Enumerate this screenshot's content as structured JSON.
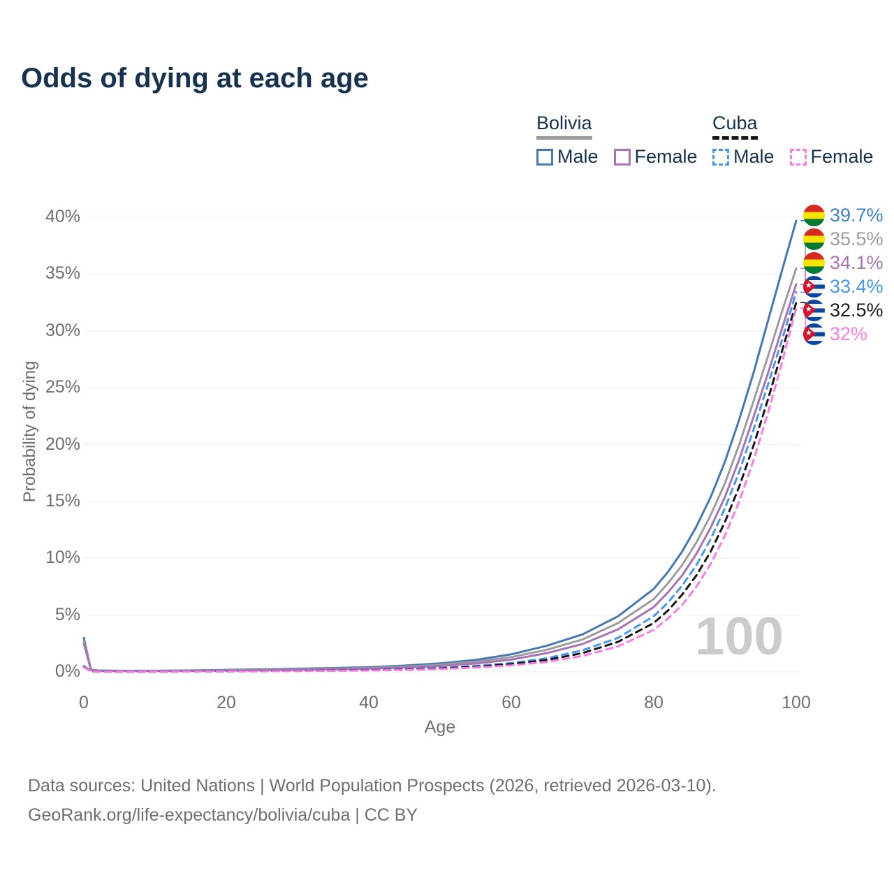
{
  "title": "Odds of dying at each age",
  "legend": {
    "groups": [
      {
        "name": "Bolivia",
        "rule_style": "solid",
        "rule_color": "#9b9b9b",
        "items": [
          {
            "label": "Male",
            "color": "#4478b4",
            "style": "solid"
          },
          {
            "label": "Female",
            "color": "#a873b4",
            "style": "solid"
          }
        ]
      },
      {
        "name": "Cuba",
        "rule_style": "dashed",
        "rule_color": "#161616",
        "items": [
          {
            "label": "Male",
            "color": "#4697f2",
            "style": "dashed"
          },
          {
            "label": "Female",
            "color": "#fb7be4",
            "style": "dashed"
          }
        ]
      }
    ]
  },
  "axes": {
    "y": {
      "label": "Probability of dying",
      "tick_labels": [
        "0%",
        "5%",
        "10%",
        "15%",
        "20%",
        "25%",
        "30%",
        "35%",
        "40%"
      ]
    },
    "x": {
      "label": "Age",
      "tick_labels": [
        "0",
        "20",
        "40",
        "60",
        "80",
        "100"
      ]
    }
  },
  "end_labels": [
    {
      "value": "39.7%",
      "flag": "bolivia",
      "series": "bolivia_male",
      "color": "#4080c8"
    },
    {
      "value": "35.5%",
      "flag": "bolivia",
      "series": "bolivia_both",
      "color": "#9c9c9c"
    },
    {
      "value": "34.1%",
      "flag": "bolivia",
      "series": "bolivia_female",
      "color": "#a873b4"
    },
    {
      "value": "33.4%",
      "flag": "cuba",
      "series": "cuba_male",
      "color": "#4697f2"
    },
    {
      "value": "32.5%",
      "flag": "cuba",
      "series": "cuba_both",
      "color": "#1b1b1b"
    },
    {
      "value": "32%",
      "flag": "cuba",
      "series": "cuba_female",
      "color": "#fb7be4"
    }
  ],
  "watermark": "100",
  "footer": {
    "line1": "Data sources: United Nations | World Population Prospects (2026, retrieved 2026-03-10).",
    "line2": "GeoRank.org/life-expectancy/bolivia/cuba | CC BY"
  },
  "chart_data": {
    "type": "line",
    "title": "Odds of dying at each age",
    "xlabel": "Age",
    "ylabel": "Probability of dying",
    "xlim": [
      0,
      100
    ],
    "ylim_percent": [
      0,
      40
    ],
    "grid": "horizontal",
    "legend_position": "top-right",
    "units": "percent",
    "x": [
      0,
      1,
      2,
      5,
      10,
      15,
      20,
      25,
      30,
      35,
      40,
      45,
      50,
      55,
      60,
      65,
      70,
      75,
      80,
      82,
      84,
      86,
      88,
      90,
      92,
      94,
      96,
      98,
      100
    ],
    "series": [
      {
        "key": "bolivia_male",
        "name": "Bolivia Male",
        "color": "#4478b4",
        "dash": false,
        "values": [
          3.0,
          0.2,
          0.12,
          0.1,
          0.1,
          0.13,
          0.18,
          0.23,
          0.28,
          0.34,
          0.42,
          0.55,
          0.75,
          1.05,
          1.55,
          2.3,
          3.3,
          4.9,
          7.3,
          8.8,
          10.6,
          12.8,
          15.4,
          18.5,
          22.2,
          26.3,
          30.8,
          35.3,
          39.7
        ]
      },
      {
        "key": "bolivia_both",
        "name": "Bolivia Both sexes",
        "color": "#9c9c9c",
        "dash": false,
        "values": [
          2.75,
          0.18,
          0.11,
          0.09,
          0.09,
          0.11,
          0.15,
          0.19,
          0.23,
          0.28,
          0.35,
          0.46,
          0.63,
          0.89,
          1.3,
          1.95,
          2.85,
          4.3,
          6.4,
          7.8,
          9.4,
          11.4,
          13.8,
          16.6,
          20.0,
          23.8,
          27.7,
          31.7,
          35.5
        ]
      },
      {
        "key": "bolivia_female",
        "name": "Bolivia Female",
        "color": "#a873b4",
        "dash": false,
        "values": [
          2.5,
          0.16,
          0.1,
          0.08,
          0.08,
          0.09,
          0.12,
          0.15,
          0.19,
          0.23,
          0.29,
          0.38,
          0.52,
          0.74,
          1.08,
          1.65,
          2.45,
          3.75,
          5.7,
          7.0,
          8.5,
          10.4,
          12.7,
          15.4,
          18.7,
          22.4,
          26.2,
          30.2,
          34.1
        ]
      },
      {
        "key": "cuba_male",
        "name": "Cuba Male",
        "color": "#4697f2",
        "dash": true,
        "values": [
          0.5,
          0.05,
          0.03,
          0.02,
          0.02,
          0.04,
          0.06,
          0.08,
          0.1,
          0.13,
          0.17,
          0.24,
          0.35,
          0.52,
          0.78,
          1.2,
          1.9,
          3.0,
          4.9,
          6.1,
          7.6,
          9.4,
          11.7,
          14.4,
          17.6,
          21.3,
          25.2,
          29.2,
          33.4
        ]
      },
      {
        "key": "cuba_both",
        "name": "Cuba Both sexes",
        "color": "#161616",
        "dash": true,
        "values": [
          0.45,
          0.045,
          0.025,
          0.018,
          0.018,
          0.032,
          0.05,
          0.065,
          0.085,
          0.11,
          0.15,
          0.21,
          0.3,
          0.45,
          0.68,
          1.05,
          1.65,
          2.65,
          4.3,
          5.4,
          6.8,
          8.5,
          10.6,
          13.2,
          16.3,
          19.9,
          23.9,
          28.2,
          32.5
        ]
      },
      {
        "key": "cuba_female",
        "name": "Cuba Female",
        "color": "#fb7be4",
        "dash": true,
        "values": [
          0.4,
          0.04,
          0.02,
          0.015,
          0.015,
          0.025,
          0.04,
          0.05,
          0.07,
          0.09,
          0.12,
          0.17,
          0.25,
          0.38,
          0.57,
          0.88,
          1.4,
          2.25,
          3.7,
          4.7,
          5.9,
          7.5,
          9.5,
          12.0,
          15.0,
          18.6,
          22.7,
          27.2,
          32.0
        ]
      }
    ]
  }
}
